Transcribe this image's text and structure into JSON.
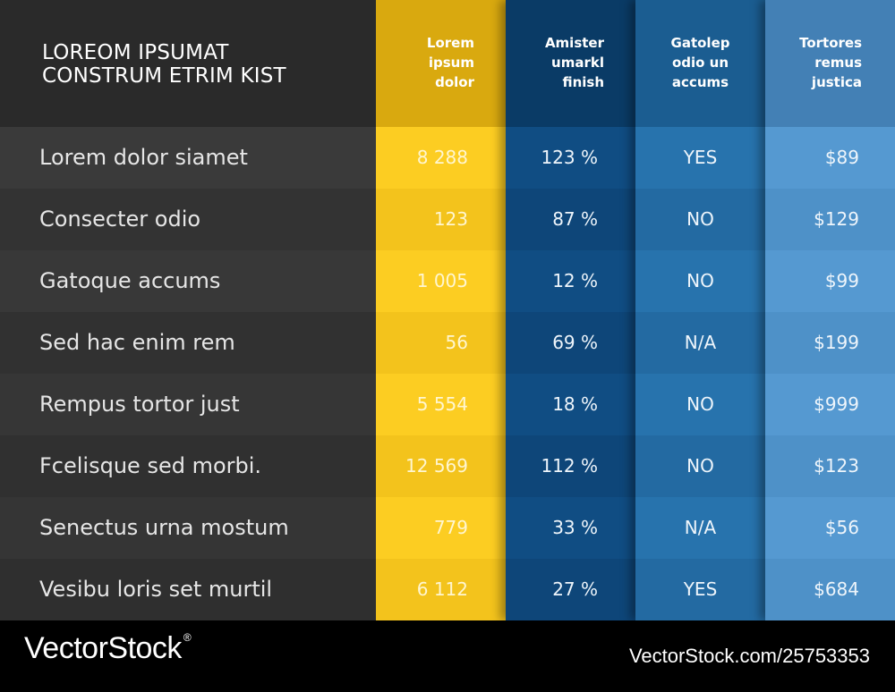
{
  "title": {
    "line1": "LOREOM IPSUMAT",
    "line2": "CONSTRUM ETRIM KIST"
  },
  "rows": [
    "Lorem dolor siamet",
    "Consecter odio",
    "Gatoque accums",
    "Sed hac enim rem",
    "Rempus tortor just",
    "Fcelisque sed morbi.",
    "Senectus urna mostum",
    "Vesibu loris set murtil"
  ],
  "columns": [
    {
      "header": [
        "Lorem",
        "ipsum",
        "dolor"
      ],
      "values": [
        "8 288",
        "123",
        "1 005",
        "56",
        "5 554",
        "12 569",
        "779",
        "6 112"
      ],
      "color": "#f5c21b"
    },
    {
      "header": [
        "Amister",
        "umarkl",
        "finish"
      ],
      "values": [
        "123 %",
        "87 %",
        "12 %",
        "69 %",
        "18 %",
        "112 %",
        "33 %",
        "27 %"
      ],
      "color": "#0f4a7e"
    },
    {
      "header": [
        "Gatolep",
        "odio un",
        "accums"
      ],
      "values": [
        "YES",
        "NO",
        "NO",
        "N/A",
        "NO",
        "NO",
        "N/A",
        "YES"
      ],
      "color": "#236fa8"
    },
    {
      "header": [
        "Tortores",
        "remus",
        "justica"
      ],
      "values": [
        "$89",
        "$129",
        "$99",
        "$199",
        "$999",
        "$123",
        "$56",
        "$684"
      ],
      "color": "#4f94cc"
    }
  ],
  "footer": {
    "logo": "VectorStock",
    "registered": "®",
    "url": "VectorStock.com/25753353"
  }
}
